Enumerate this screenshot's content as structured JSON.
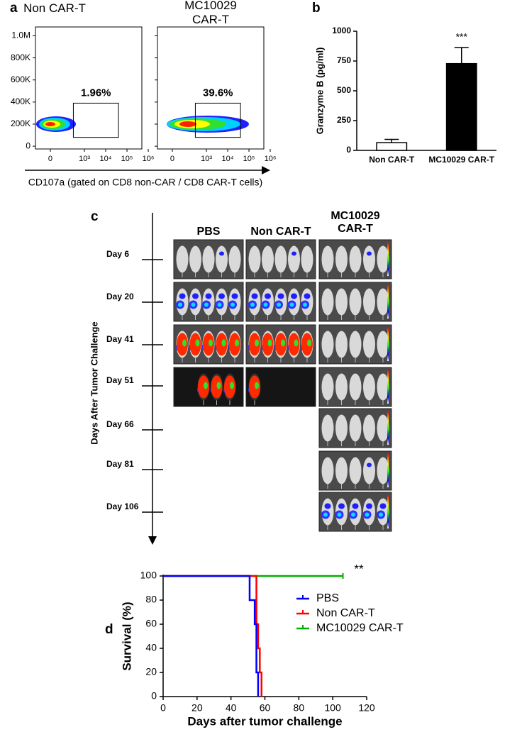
{
  "panel_labels": [
    "a",
    "b",
    "c",
    "d"
  ],
  "chart_data": [
    {
      "type": "flow",
      "x_label": "CD107a (gated on CD8 non-CAR / CD8 CAR-T cells)",
      "panels": [
        {
          "title": "Non CAR-T",
          "gate_label": "1.96%"
        },
        {
          "title": "MC10029 CAR-T",
          "gate_label": "39.6%"
        }
      ],
      "xscale": "biexponential",
      "xlim": [
        -120,
        500000
      ],
      "xticks": [
        0,
        {
          "value": 1000,
          "label": "10³"
        },
        {
          "value": 10000,
          "label": "10⁴"
        },
        {
          "value": 100000,
          "label": "10⁵"
        },
        {
          "value": 1000000,
          "label": "10⁶"
        }
      ],
      "ylim": [
        -25000,
        1080000
      ],
      "yticks": [
        0,
        {
          "value": 200000,
          "label": "200K"
        },
        {
          "value": 400000,
          "label": "400K"
        },
        {
          "value": 600000,
          "label": "600K"
        },
        {
          "value": 800000,
          "label": "800K"
        },
        {
          "value": 1000000,
          "label": "1.0M"
        }
      ]
    },
    {
      "type": "bar",
      "y_label": "Granzyme B (pg/ml)",
      "categories": [
        "Non CAR-T",
        "MC10029 CAR-T"
      ],
      "values": [
        65,
        728
      ],
      "errors": [
        27,
        135
      ],
      "colors": [
        "#ffffff",
        "#000000"
      ],
      "annotation": "***",
      "ylim": [
        0,
        1000
      ],
      "yticks": [
        0,
        250,
        500,
        750,
        1000
      ]
    },
    {
      "type": "step",
      "x_label": "Days after tumor challenge",
      "y_label": "Survival (%)",
      "annotation": "**",
      "series": [
        {
          "name": "PBS",
          "color": "#0000ff",
          "x": [
            0,
            51,
            54,
            55,
            56
          ],
          "values": [
            100,
            80,
            60,
            20,
            0
          ]
        },
        {
          "name": "Non CAR-T",
          "color": "#ff0000",
          "x": [
            0,
            55,
            56,
            57,
            58
          ],
          "values": [
            100,
            60,
            40,
            20,
            0
          ]
        },
        {
          "name": "MC10029 CAR-T",
          "color": "#00b000",
          "x": [
            0,
            106
          ],
          "values": [
            100,
            100
          ]
        }
      ],
      "xlim": [
        0,
        120
      ],
      "xticks": [
        0,
        20,
        40,
        60,
        80,
        100,
        120
      ],
      "ylim": [
        0,
        100
      ],
      "yticks": [
        0,
        20,
        40,
        60,
        80,
        100
      ]
    }
  ],
  "imaging": {
    "columns": [
      "PBS",
      "Non CAR-T",
      "MC10029 CAR-T"
    ],
    "days": [
      "Day 6",
      "Day 20",
      "Day 41",
      "Day 51",
      "Day 66",
      "Day 81",
      "Day 106"
    ],
    "y_label": "Days After Tumor Challenge"
  }
}
